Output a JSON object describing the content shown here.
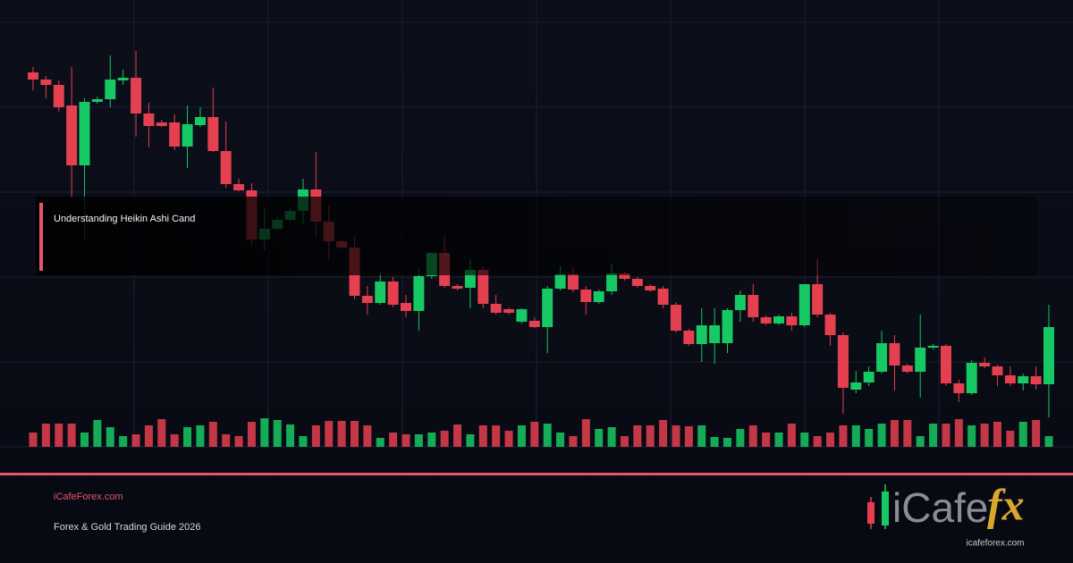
{
  "title": "Understanding Heikin Ashi Cand",
  "site": "iCafeForex.com",
  "tagline": "Forex & Gold Trading Guide 2026",
  "logo": {
    "text": "iCafe",
    "accent": "fx",
    "url": "icafeforex.com"
  },
  "chart_data": {
    "type": "candlestick",
    "up_color": "#17c964",
    "down_color": "#e5404f",
    "grid": true,
    "ylim": [
      100,
      600
    ],
    "volume_lim": [
      0,
      100
    ],
    "open": [
      519,
      511,
      505,
      482,
      415,
      486,
      489,
      510,
      513,
      473,
      463,
      463,
      436,
      460,
      469,
      431,
      394,
      387,
      332,
      344,
      354,
      364,
      388,
      352,
      330,
      323,
      269,
      261,
      285,
      261,
      252,
      291,
      317,
      280,
      278,
      298,
      260,
      254,
      240,
      241,
      234,
      277,
      293,
      276,
      262,
      274,
      294,
      288,
      280,
      277,
      259,
      230,
      215,
      216,
      216,
      253,
      270,
      245,
      238,
      246,
      236,
      282,
      248,
      225,
      164,
      172,
      184,
      216,
      191,
      184,
      211,
      213,
      171,
      160,
      194,
      190,
      180,
      171,
      179,
      170
    ],
    "close": [
      511,
      505,
      480,
      415,
      486,
      489,
      511,
      513,
      473,
      459,
      459,
      436,
      461,
      469,
      431,
      394,
      387,
      332,
      344,
      354,
      364,
      388,
      352,
      330,
      323,
      269,
      261,
      285,
      259,
      252,
      291,
      317,
      280,
      277,
      298,
      260,
      250,
      250,
      254,
      234,
      277,
      293,
      276,
      262,
      274,
      294,
      288,
      280,
      275,
      259,
      230,
      215,
      236,
      236,
      253,
      270,
      245,
      238,
      246,
      236,
      282,
      248,
      225,
      166,
      172,
      184,
      216,
      191,
      184,
      211,
      213,
      171,
      160,
      194,
      190,
      180,
      171,
      179,
      170,
      234
    ],
    "high": [
      525,
      515,
      510,
      525,
      490,
      492,
      538,
      522,
      543,
      485,
      466,
      472,
      482,
      480,
      502,
      464,
      400,
      395,
      368,
      358,
      368,
      400,
      430,
      370,
      332,
      335,
      280,
      295,
      290,
      270,
      300,
      317,
      335,
      282,
      310,
      302,
      270,
      256,
      255,
      245,
      280,
      302,
      300,
      280,
      276,
      304,
      296,
      290,
      282,
      280,
      262,
      232,
      255,
      255,
      255,
      275,
      282,
      247,
      248,
      250,
      282,
      310,
      250,
      228,
      185,
      190,
      230,
      225,
      193,
      248,
      215,
      215,
      175,
      197,
      200,
      192,
      190,
      182,
      190,
      259
    ],
    "low": [
      499,
      490,
      475,
      378,
      330,
      484,
      480,
      505,
      447,
      435,
      458,
      432,
      412,
      458,
      430,
      390,
      386,
      325,
      320,
      342,
      352,
      350,
      335,
      310,
      321,
      265,
      248,
      259,
      256,
      245,
      230,
      288,
      278,
      275,
      255,
      255,
      248,
      248,
      238,
      233,
      205,
      275,
      273,
      248,
      260,
      270,
      286,
      278,
      273,
      255,
      228,
      213,
      195,
      193,
      205,
      240,
      240,
      236,
      236,
      230,
      234,
      245,
      213,
      137,
      160,
      168,
      182,
      163,
      182,
      155,
      209,
      168,
      150,
      158,
      188,
      168,
      168,
      163,
      164,
      133
    ],
    "volume": [
      16,
      26,
      26,
      26,
      16,
      30,
      22,
      12,
      14,
      24,
      31,
      14,
      22,
      24,
      28,
      14,
      12,
      28,
      32,
      30,
      25,
      12,
      24,
      29,
      29,
      29,
      24,
      10,
      16,
      14,
      14,
      16,
      18,
      25,
      14,
      24,
      24,
      18,
      24,
      28,
      26,
      16,
      12,
      31,
      20,
      22,
      12,
      24,
      24,
      30,
      24,
      23,
      24,
      11,
      10,
      20,
      24,
      16,
      16,
      26,
      16,
      12,
      16,
      24,
      24,
      20,
      26,
      30,
      30,
      12,
      26,
      26,
      31,
      24,
      26,
      28,
      18,
      28,
      30,
      12
    ]
  }
}
